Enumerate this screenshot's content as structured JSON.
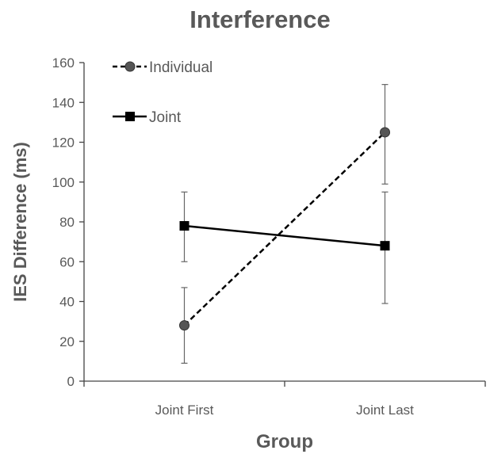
{
  "chart_data": {
    "type": "line",
    "title": "Interference",
    "xlabel": "Group",
    "ylabel": "IES Difference (ms)",
    "categories": [
      "Joint First",
      "Joint Last"
    ],
    "ylim": [
      0,
      160
    ],
    "yticks": [
      0,
      20,
      40,
      60,
      80,
      100,
      120,
      140,
      160
    ],
    "grid": false,
    "legend_position": "top-left",
    "series": [
      {
        "name": "Individual",
        "values": [
          28,
          125
        ],
        "error_low": [
          9,
          99
        ],
        "error_high": [
          47,
          149
        ],
        "style": "dashed",
        "marker": "circle",
        "color": "#555555"
      },
      {
        "name": "Joint",
        "values": [
          78,
          68
        ],
        "error_low": [
          60,
          39
        ],
        "error_high": [
          95,
          95
        ],
        "style": "solid",
        "marker": "square",
        "color": "#000000"
      }
    ]
  }
}
